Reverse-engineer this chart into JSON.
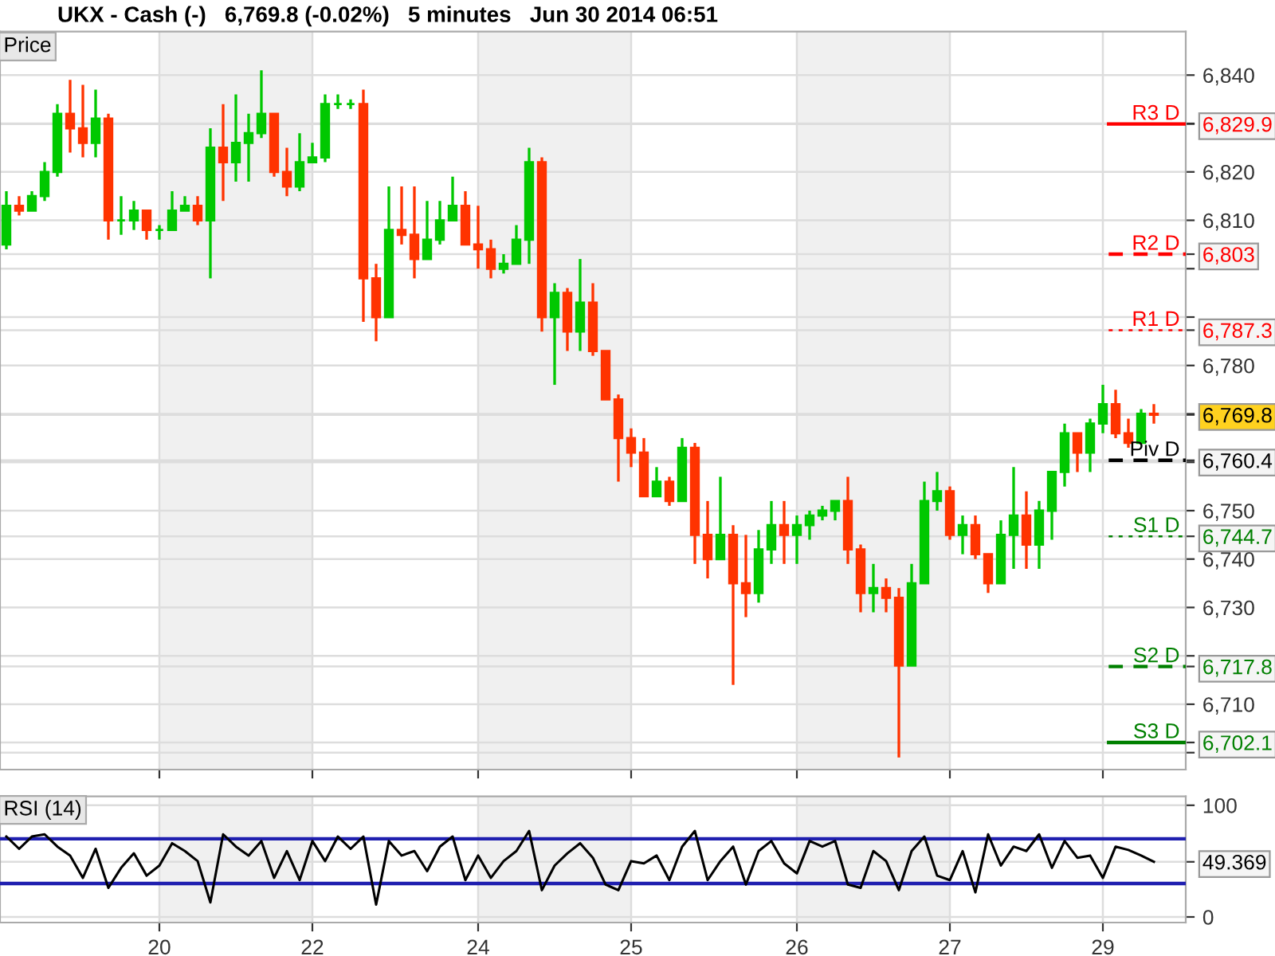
{
  "chart_data": [
    {
      "type": "candlestick",
      "title": "UKX - Cash (-)   6,769.8 (-0.02%)   5 minutes   Jun 30 2014 06:51",
      "subtitle": "Price",
      "categories": [
        null,
        null,
        null,
        null,
        null,
        null,
        null,
        null,
        null,
        null,
        null,
        null,
        "20",
        null,
        null,
        null,
        null,
        null,
        null,
        null,
        null,
        null,
        null,
        null,
        "22",
        null,
        null,
        null,
        null,
        null,
        null,
        null,
        null,
        null,
        null,
        null,
        null,
        "24",
        null,
        null,
        null,
        null,
        null,
        null,
        null,
        null,
        null,
        null,
        null,
        "25",
        null,
        null,
        null,
        null,
        null,
        null,
        null,
        null,
        null,
        null,
        null,
        null,
        "26",
        null,
        null,
        null,
        null,
        null,
        null,
        null,
        null,
        null,
        null,
        null,
        "27",
        null,
        null,
        null,
        null,
        null,
        null,
        null,
        null,
        null,
        null,
        null,
        "29",
        null,
        null,
        null,
        null
      ],
      "ohlc": [
        [
          6805,
          6816,
          6804,
          6813
        ],
        [
          6813,
          6815,
          6811,
          6812
        ],
        [
          6812,
          6816,
          6812,
          6815
        ],
        [
          6815,
          6822,
          6814,
          6820
        ],
        [
          6820,
          6834,
          6819,
          6832
        ],
        [
          6832,
          6839,
          6824,
          6829
        ],
        [
          6829,
          6838,
          6823,
          6826
        ],
        [
          6826,
          6837,
          6823,
          6831
        ],
        [
          6831,
          6832,
          6806,
          6810
        ],
        [
          6810,
          6815,
          6807,
          6810
        ],
        [
          6810,
          6814,
          6808,
          6812
        ],
        [
          6812,
          6812,
          6806,
          6808
        ],
        [
          6808,
          6809,
          6806,
          6808
        ],
        [
          6808,
          6816,
          6808,
          6812
        ],
        [
          6812,
          6815,
          6812,
          6813
        ],
        [
          6813,
          6815,
          6809,
          6810
        ],
        [
          6810,
          6829,
          6798,
          6825
        ],
        [
          6825,
          6834,
          6814,
          6822
        ],
        [
          6822,
          6836,
          6818,
          6826
        ],
        [
          6826,
          6832,
          6818,
          6828
        ],
        [
          6828,
          6841,
          6827,
          6832
        ],
        [
          6832,
          6832,
          6819,
          6820
        ],
        [
          6820,
          6825,
          6815,
          6817
        ],
        [
          6817,
          6828,
          6816,
          6822
        ],
        [
          6822,
          6826,
          6822,
          6823
        ],
        [
          6823,
          6836,
          6822,
          6834
        ],
        [
          6834,
          6836,
          6833,
          6834
        ],
        [
          6834,
          6835,
          6833,
          6834
        ],
        [
          6834,
          6837,
          6789,
          6798
        ],
        [
          6798,
          6801,
          6785,
          6790
        ],
        [
          6790,
          6817,
          6790,
          6808
        ],
        [
          6808,
          6817,
          6805,
          6807
        ],
        [
          6807,
          6817,
          6798,
          6802
        ],
        [
          6802,
          6814,
          6802,
          6806
        ],
        [
          6806,
          6814,
          6805,
          6810
        ],
        [
          6810,
          6819,
          6810,
          6813
        ],
        [
          6813,
          6816,
          6805,
          6805
        ],
        [
          6805,
          6813,
          6800,
          6804
        ],
        [
          6804,
          6806,
          6798,
          6800
        ],
        [
          6800,
          6803,
          6799,
          6801
        ],
        [
          6801,
          6809,
          6801,
          6806
        ],
        [
          6806,
          6825,
          6801,
          6822
        ],
        [
          6822,
          6823,
          6787,
          6790
        ],
        [
          6790,
          6797,
          6776,
          6795
        ],
        [
          6795,
          6796,
          6783,
          6787
        ],
        [
          6787,
          6802,
          6783,
          6793
        ],
        [
          6793,
          6797,
          6782,
          6783
        ],
        [
          6783,
          6783,
          6773,
          6773
        ],
        [
          6773,
          6774,
          6756,
          6765
        ],
        [
          6765,
          6767,
          6759,
          6762
        ],
        [
          6762,
          6765,
          6753,
          6753
        ],
        [
          6753,
          6759,
          6753,
          6756
        ],
        [
          6756,
          6757,
          6751,
          6752
        ],
        [
          6752,
          6765,
          6752,
          6763
        ],
        [
          6763,
          6764,
          6739,
          6745
        ],
        [
          6745,
          6752,
          6736,
          6740
        ],
        [
          6740,
          6757,
          6740,
          6745
        ],
        [
          6745,
          6747,
          6714,
          6735
        ],
        [
          6735,
          6745,
          6728,
          6733
        ],
        [
          6733,
          6746,
          6731,
          6742
        ],
        [
          6742,
          6752,
          6739,
          6747
        ],
        [
          6747,
          6752,
          6739,
          6745
        ],
        [
          6745,
          6749,
          6739,
          6747
        ],
        [
          6747,
          6750,
          6744,
          6749
        ],
        [
          6749,
          6751,
          6748,
          6750
        ],
        [
          6750,
          6752,
          6748,
          6752
        ],
        [
          6752,
          6757,
          6739,
          6742
        ],
        [
          6742,
          6743,
          6729,
          6733
        ],
        [
          6733,
          6739,
          6729,
          6734
        ],
        [
          6734,
          6736,
          6729,
          6732
        ],
        [
          6732,
          6734,
          6699,
          6718
        ],
        [
          6718,
          6739,
          6718,
          6735
        ],
        [
          6735,
          6756,
          6735,
          6752
        ],
        [
          6752,
          6758,
          6750,
          6754
        ],
        [
          6754,
          6755,
          6744,
          6745
        ],
        [
          6745,
          6749,
          6741,
          6747
        ],
        [
          6747,
          6749,
          6740,
          6741
        ],
        [
          6741,
          6741,
          6733,
          6735
        ],
        [
          6735,
          6748,
          6735,
          6745
        ],
        [
          6745,
          6759,
          6738,
          6749
        ],
        [
          6749,
          6754,
          6738,
          6743
        ],
        [
          6743,
          6752,
          6738,
          6750
        ],
        [
          6750,
          6758,
          6744,
          6758
        ],
        [
          6758,
          6768,
          6755,
          6766
        ],
        [
          6766,
          6766,
          6758,
          6762
        ],
        [
          6762,
          6769,
          6758,
          6768
        ],
        [
          6768,
          6776,
          6766,
          6772
        ],
        [
          6772,
          6775,
          6765,
          6766
        ],
        [
          6766,
          6769,
          6763,
          6764
        ],
        [
          6764,
          6771,
          6764,
          6770
        ],
        [
          6770,
          6772,
          6768,
          6769.8
        ]
      ],
      "colors": [
        "#00c800",
        "#ff3300",
        "#00c800",
        "#00c800",
        "#00c800",
        "#ff3300",
        "#ff3300",
        "#00c800",
        "#ff3300",
        "#00c800",
        "#00c800",
        "#ff3300",
        "#00c800",
        "#00c800",
        "#00c800",
        "#ff3300",
        "#00c800",
        "#ff3300",
        "#00c800",
        "#00c800",
        "#00c800",
        "#ff3300",
        "#ff3300",
        "#00c800",
        "#00c800",
        "#00c800",
        "#00c800",
        "#00c800",
        "#ff3300",
        "#ff3300",
        "#00c800",
        "#ff3300",
        "#ff3300",
        "#00c800",
        "#00c800",
        "#00c800",
        "#ff3300",
        "#ff3300",
        "#ff3300",
        "#00c800",
        "#00c800",
        "#00c800",
        "#ff3300",
        "#00c800",
        "#ff3300",
        "#00c800",
        "#ff3300",
        "#ff3300",
        "#ff3300",
        "#ff3300",
        "#ff3300",
        "#00c800",
        "#ff3300",
        "#00c800",
        "#ff3300",
        "#ff3300",
        "#00c800",
        "#ff3300",
        "#ff3300",
        "#00c800",
        "#00c800",
        "#ff3300",
        "#00c800",
        "#00c800",
        "#00c800",
        "#00c800",
        "#ff3300",
        "#ff3300",
        "#00c800",
        "#ff3300",
        "#ff3300",
        "#00c800",
        "#00c800",
        "#00c800",
        "#ff3300",
        "#00c800",
        "#ff3300",
        "#ff3300",
        "#00c800",
        "#00c800",
        "#ff3300",
        "#00c800",
        "#00c800",
        "#00c800",
        "#ff3300",
        "#00c800",
        "#00c800",
        "#ff3300",
        "#ff3300",
        "#00c800",
        "#ff3300"
      ],
      "ylim": [
        6696.5,
        6849
      ],
      "yticks": [
        {
          "value": 6700,
          "label": null
        },
        {
          "value": 6710,
          "label": "6,710"
        },
        {
          "value": 6720,
          "label": null
        },
        {
          "value": 6730,
          "label": "6,730"
        },
        {
          "value": 6740,
          "label": "6,740"
        },
        {
          "value": 6750,
          "label": "6,750"
        },
        {
          "value": 6760,
          "label": null
        },
        {
          "value": 6770,
          "label": null
        },
        {
          "value": 6780,
          "label": "6,780"
        },
        {
          "value": 6790,
          "label": null
        },
        {
          "value": 6800,
          "label": null
        },
        {
          "value": 6810,
          "label": "6,810"
        },
        {
          "value": 6820,
          "label": "6,820"
        },
        {
          "value": 6830,
          "label": null
        },
        {
          "value": 6840,
          "label": "6,840"
        },
        {
          "value": 6829.9,
          "label": "6,829.9"
        },
        {
          "value": 6803,
          "label": "6,803"
        },
        {
          "value": 6787.3,
          "label": "6,787.3"
        },
        {
          "value": 6769.8,
          "label": "6,769.8"
        },
        {
          "value": 6760.4,
          "label": "6,760.4"
        },
        {
          "value": 6744.7,
          "label": "6,744.7"
        },
        {
          "value": 6717.8,
          "label": "6,717.8"
        },
        {
          "value": 6702.1,
          "label": "6,702.1"
        }
      ],
      "tick_labels": "y",
      "grid": true,
      "bands": [
        {
          "axis": "x",
          "from": "20",
          "to": "22",
          "color": "#f0f0f0"
        },
        {
          "axis": "x",
          "from": "24",
          "to": "25",
          "color": "#f0f0f0"
        },
        {
          "axis": "x",
          "from": "26",
          "to": "27",
          "color": "#f0f0f0"
        }
      ],
      "ref_lines": [
        {
          "axis": "y",
          "value": 6829.9,
          "label": "R3 D",
          "color": "#ff0000",
          "line_style": "solid"
        },
        {
          "axis": "y",
          "value": 6803,
          "label": "R2 D",
          "color": "#ff0000",
          "line_style": "dashed"
        },
        {
          "axis": "y",
          "value": 6787.3,
          "label": "R1 D",
          "color": "#ff0000",
          "line_style": "dotted"
        },
        {
          "axis": "y",
          "value": 6760.4,
          "label": "Piv D",
          "color": "#000000",
          "line_style": "dashed"
        },
        {
          "axis": "y",
          "value": 6744.7,
          "label": "S1 D",
          "color": "#008000",
          "line_style": "dotted"
        },
        {
          "axis": "y",
          "value": 6717.8,
          "label": "S2 D",
          "color": "#008000",
          "line_style": "dashed"
        },
        {
          "axis": "y",
          "value": 6702.1,
          "label": "S3 D",
          "color": "#008000",
          "line_style": "solid"
        }
      ]
    },
    {
      "type": "line",
      "title": "RSI (14)",
      "categories": [
        null,
        null,
        null,
        null,
        null,
        null,
        null,
        null,
        null,
        null,
        null,
        null,
        "20",
        null,
        null,
        null,
        null,
        null,
        null,
        null,
        null,
        null,
        null,
        null,
        "22",
        null,
        null,
        null,
        null,
        null,
        null,
        null,
        null,
        null,
        null,
        null,
        null,
        "24",
        null,
        null,
        null,
        null,
        null,
        null,
        null,
        null,
        null,
        null,
        null,
        "25",
        null,
        null,
        null,
        null,
        null,
        null,
        null,
        null,
        null,
        null,
        null,
        null,
        "26",
        null,
        null,
        null,
        null,
        null,
        null,
        null,
        null,
        null,
        null,
        null,
        "27",
        null,
        null,
        null,
        null,
        null,
        null,
        null,
        null,
        null,
        null,
        null,
        "29",
        null,
        null,
        null,
        null
      ],
      "series": [
        {
          "color": "#000000",
          "values": [
            72,
            61,
            72,
            74,
            63,
            55,
            35,
            61,
            26,
            44,
            57,
            37,
            46,
            66,
            59,
            50,
            13,
            74,
            63,
            55,
            68,
            35,
            59,
            33,
            68,
            50,
            72,
            61,
            72,
            11,
            68,
            55,
            59,
            41,
            63,
            72,
            33,
            55,
            35,
            50,
            59,
            77,
            24,
            46,
            57,
            66,
            53,
            29,
            24,
            50,
            48,
            55,
            33,
            63,
            77,
            33,
            50,
            63,
            29,
            59,
            68,
            48,
            39,
            68,
            63,
            68,
            29,
            26,
            59,
            50,
            24,
            59,
            72,
            37,
            33,
            59,
            22,
            74,
            46,
            63,
            59,
            74,
            44,
            68,
            53,
            55,
            35,
            63,
            60,
            55,
            49.369
          ]
        }
      ],
      "ylim": [
        -5,
        108
      ],
      "yticks": [
        0,
        100,
        {
          "value": 49.369,
          "label": "49.369"
        }
      ],
      "grid": true,
      "marker": "none",
      "line_style": "solid",
      "bands": [
        {
          "axis": "x",
          "from": "20",
          "to": "22",
          "color": "#f0f0f0"
        },
        {
          "axis": "x",
          "from": "24",
          "to": "25",
          "color": "#f0f0f0"
        },
        {
          "axis": "x",
          "from": "26",
          "to": "27",
          "color": "#f0f0f0"
        }
      ],
      "ref_lines": [
        {
          "axis": "y",
          "value": 70,
          "label": null,
          "color": "#2020b0",
          "line_style": "solid"
        },
        {
          "axis": "y",
          "value": 30,
          "label": null,
          "color": "#2020b0",
          "line_style": "solid"
        }
      ]
    }
  ]
}
